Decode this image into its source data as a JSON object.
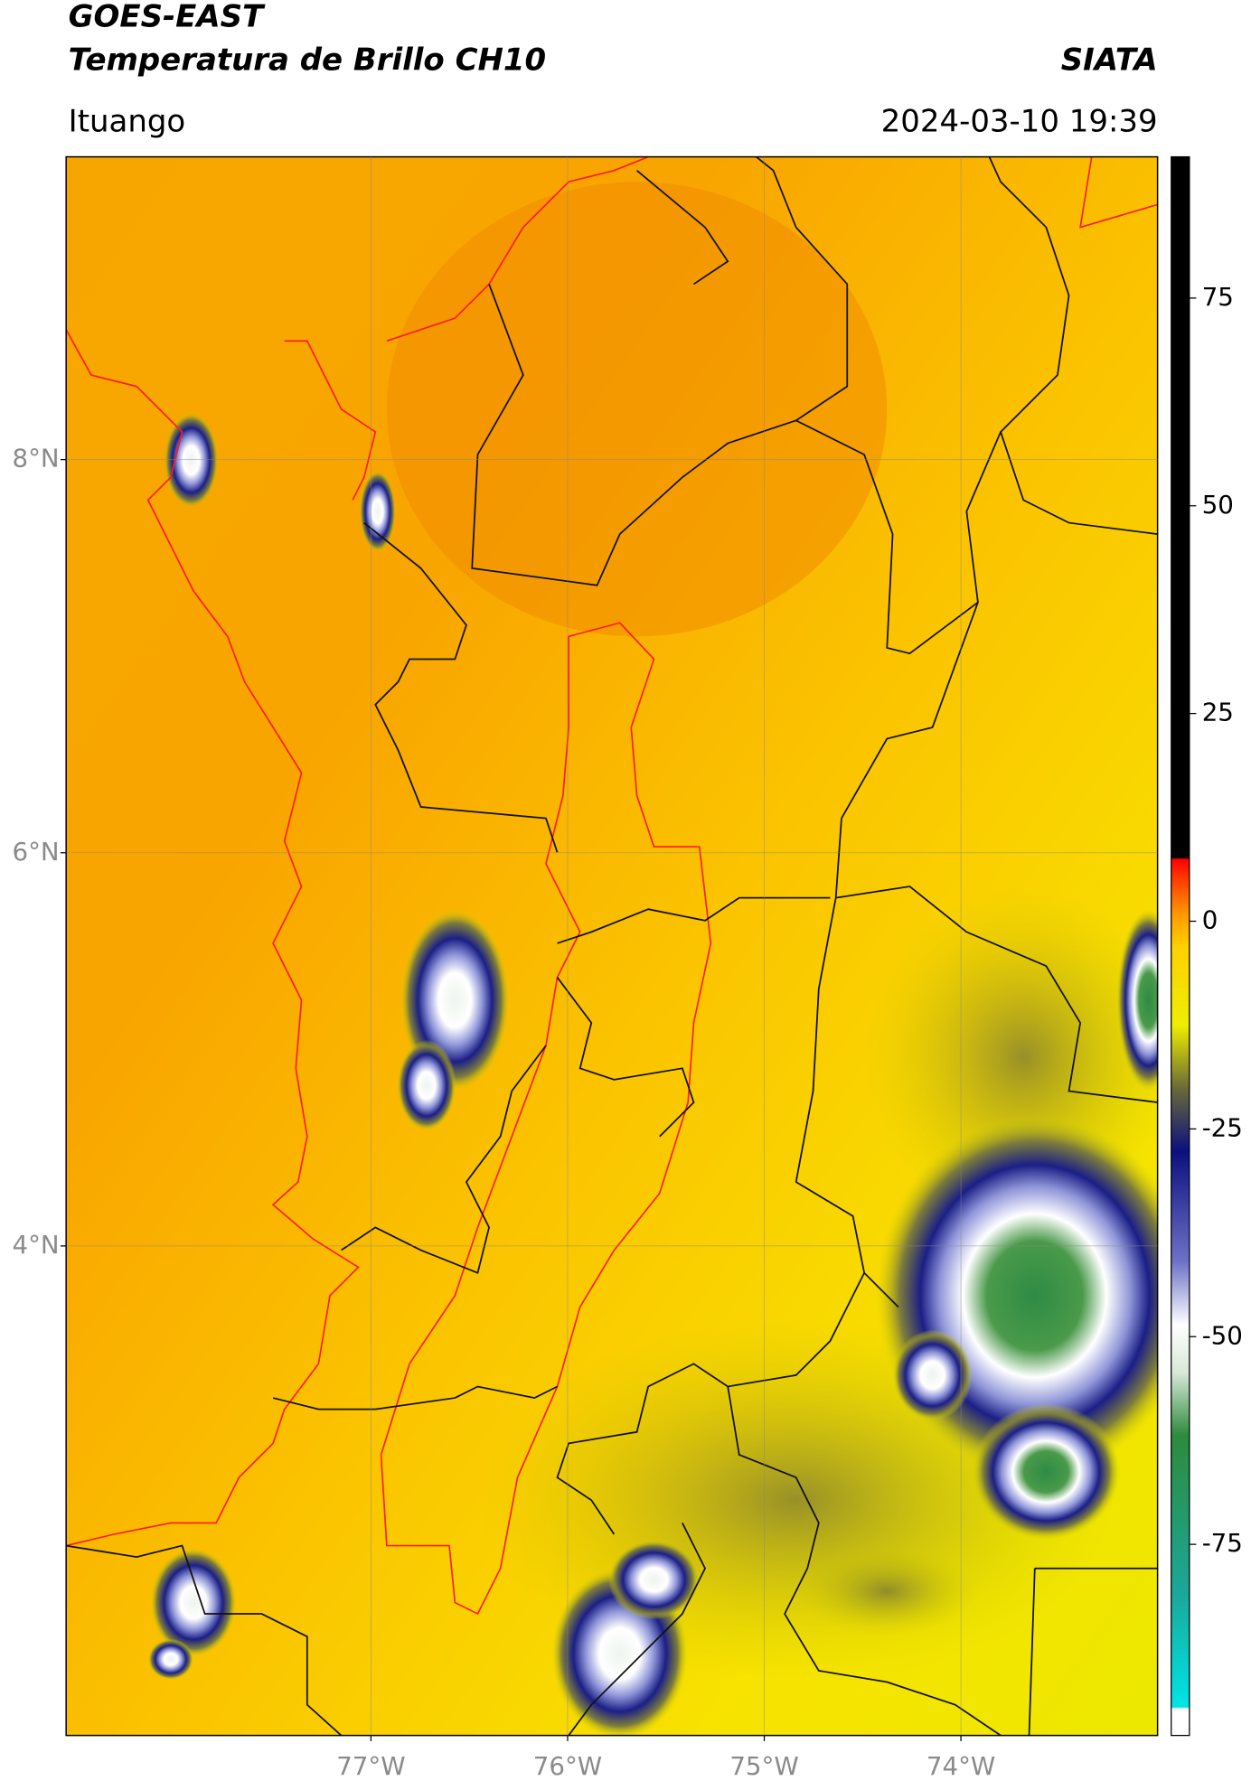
{
  "header": {
    "title_line1": "GOES-EAST",
    "title_line2": "Temperatura de Brillo CH10",
    "agency": "SIATA",
    "location": "Ituango",
    "timestamp": "2024-03-10 19:39"
  },
  "map": {
    "xlim": [
      -78.55,
      -73.0
    ],
    "ylim": [
      1.51,
      9.54
    ],
    "xticks": [
      {
        "value": -77,
        "label": "77°W"
      },
      {
        "value": -76,
        "label": "76°W"
      },
      {
        "value": -75,
        "label": "75°W"
      },
      {
        "value": -74,
        "label": "74°W"
      }
    ],
    "yticks": [
      {
        "value": 8,
        "label": "8°N"
      },
      {
        "value": 6,
        "label": "6°N"
      },
      {
        "value": 4,
        "label": "4°N"
      }
    ],
    "grid": true
  },
  "colorbar": {
    "lim": [
      -98,
      92
    ],
    "ticks": [
      75,
      50,
      25,
      0,
      -25,
      -50,
      -75
    ]
  }
}
